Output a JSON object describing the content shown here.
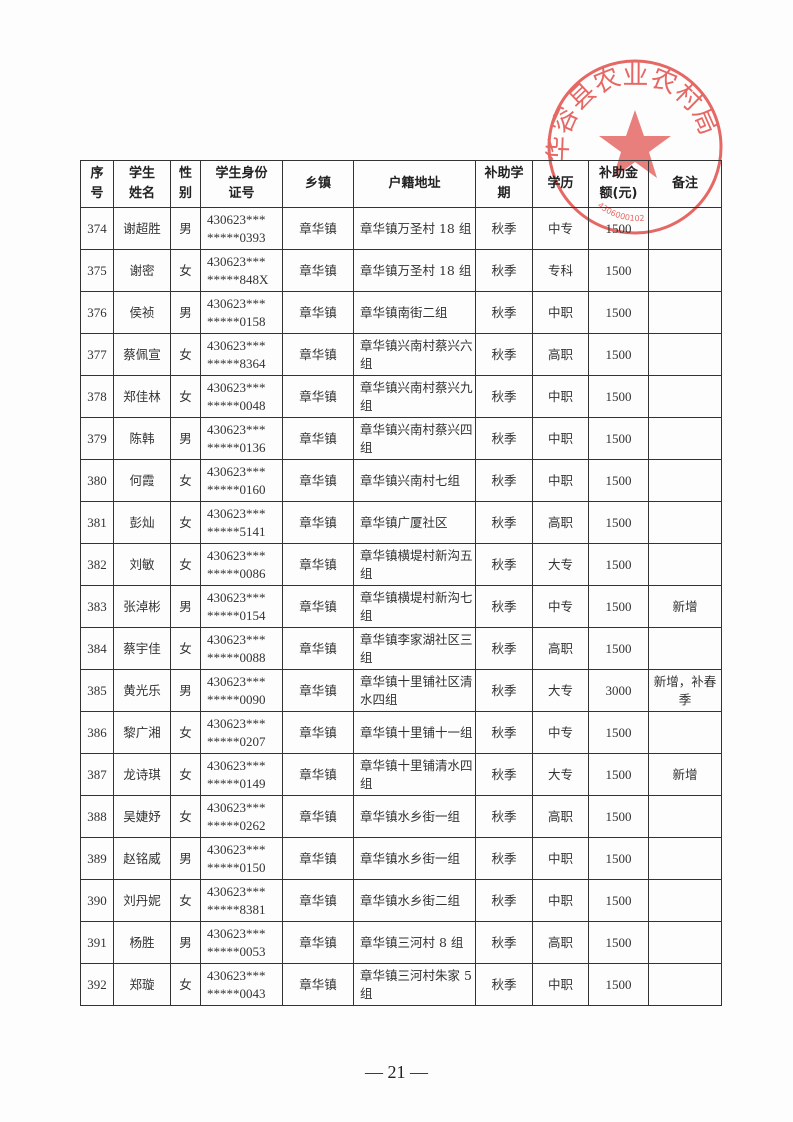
{
  "table": {
    "headers": [
      "序号",
      "学生姓名",
      "性别",
      "学生身份证号",
      "乡镇",
      "户籍地址",
      "补助学期",
      "学历",
      "补助金额(元)",
      "备注"
    ],
    "header_lines": [
      [
        "序",
        "号"
      ],
      [
        "学生",
        "姓名"
      ],
      [
        "性",
        "别"
      ],
      [
        "学生身份",
        "证号"
      ],
      [
        "乡镇"
      ],
      [
        "户籍地址"
      ],
      [
        "补助学",
        "期"
      ],
      [
        "学历"
      ],
      [
        "补助金",
        "额(元)"
      ],
      [
        "备注"
      ]
    ],
    "rows": [
      {
        "no": "374",
        "name": "谢超胜",
        "sex": "男",
        "id1": "430623***",
        "id2": "*****0393",
        "town": "章华镇",
        "addr": "章华镇万圣村 18 组",
        "term": "秋季",
        "edu": "中专",
        "amount": "1500",
        "note": ""
      },
      {
        "no": "375",
        "name": "谢密",
        "sex": "女",
        "id1": "430623***",
        "id2": "*****848X",
        "town": "章华镇",
        "addr": "章华镇万圣村 18 组",
        "term": "秋季",
        "edu": "专科",
        "amount": "1500",
        "note": ""
      },
      {
        "no": "376",
        "name": "侯祯",
        "sex": "男",
        "id1": "430623***",
        "id2": "*****0158",
        "town": "章华镇",
        "addr": "章华镇南街二组",
        "term": "秋季",
        "edu": "中职",
        "amount": "1500",
        "note": ""
      },
      {
        "no": "377",
        "name": "蔡佩宣",
        "sex": "女",
        "id1": "430623***",
        "id2": "*****8364",
        "town": "章华镇",
        "addr": "章华镇兴南村蔡兴六组",
        "term": "秋季",
        "edu": "高职",
        "amount": "1500",
        "note": ""
      },
      {
        "no": "378",
        "name": "郑佳林",
        "sex": "女",
        "id1": "430623***",
        "id2": "*****0048",
        "town": "章华镇",
        "addr": "章华镇兴南村蔡兴九组",
        "term": "秋季",
        "edu": "中职",
        "amount": "1500",
        "note": ""
      },
      {
        "no": "379",
        "name": "陈韩",
        "sex": "男",
        "id1": "430623***",
        "id2": "*****0136",
        "town": "章华镇",
        "addr": "章华镇兴南村蔡兴四组",
        "term": "秋季",
        "edu": "中职",
        "amount": "1500",
        "note": ""
      },
      {
        "no": "380",
        "name": "何霞",
        "sex": "女",
        "id1": "430623***",
        "id2": "*****0160",
        "town": "章华镇",
        "addr": "章华镇兴南村七组",
        "term": "秋季",
        "edu": "中职",
        "amount": "1500",
        "note": ""
      },
      {
        "no": "381",
        "name": "彭灿",
        "sex": "女",
        "id1": "430623***",
        "id2": "*****5141",
        "town": "章华镇",
        "addr": "章华镇广厦社区",
        "term": "秋季",
        "edu": "高职",
        "amount": "1500",
        "note": ""
      },
      {
        "no": "382",
        "name": "刘敏",
        "sex": "女",
        "id1": "430623***",
        "id2": "*****0086",
        "town": "章华镇",
        "addr": "章华镇横堤村新沟五组",
        "term": "秋季",
        "edu": "大专",
        "amount": "1500",
        "note": ""
      },
      {
        "no": "383",
        "name": "张淖彬",
        "sex": "男",
        "id1": "430623***",
        "id2": "*****0154",
        "town": "章华镇",
        "addr": "章华镇横堤村新沟七组",
        "term": "秋季",
        "edu": "中专",
        "amount": "1500",
        "note": "新增"
      },
      {
        "no": "384",
        "name": "蔡宇佳",
        "sex": "女",
        "id1": "430623***",
        "id2": "*****0088",
        "town": "章华镇",
        "addr": "章华镇李家湖社区三组",
        "term": "秋季",
        "edu": "高职",
        "amount": "1500",
        "note": ""
      },
      {
        "no": "385",
        "name": "黄光乐",
        "sex": "男",
        "id1": "430623***",
        "id2": "*****0090",
        "town": "章华镇",
        "addr": "章华镇十里铺社区清水四组",
        "term": "秋季",
        "edu": "大专",
        "amount": "3000",
        "note": "新增，补春季"
      },
      {
        "no": "386",
        "name": "黎广湘",
        "sex": "女",
        "id1": "430623***",
        "id2": "*****0207",
        "town": "章华镇",
        "addr": "章华镇十里铺十一组",
        "term": "秋季",
        "edu": "中专",
        "amount": "1500",
        "note": ""
      },
      {
        "no": "387",
        "name": "龙诗琪",
        "sex": "女",
        "id1": "430623***",
        "id2": "*****0149",
        "town": "章华镇",
        "addr": "章华镇十里铺清水四组",
        "term": "秋季",
        "edu": "大专",
        "amount": "1500",
        "note": "新增"
      },
      {
        "no": "388",
        "name": "吴婕妤",
        "sex": "女",
        "id1": "430623***",
        "id2": "*****0262",
        "town": "章华镇",
        "addr": "章华镇水乡街一组",
        "term": "秋季",
        "edu": "高职",
        "amount": "1500",
        "note": ""
      },
      {
        "no": "389",
        "name": "赵铭威",
        "sex": "男",
        "id1": "430623***",
        "id2": "*****0150",
        "town": "章华镇",
        "addr": "章华镇水乡街一组",
        "term": "秋季",
        "edu": "中职",
        "amount": "1500",
        "note": ""
      },
      {
        "no": "390",
        "name": "刘丹妮",
        "sex": "女",
        "id1": "430623***",
        "id2": "*****8381",
        "town": "章华镇",
        "addr": "章华镇水乡街二组",
        "term": "秋季",
        "edu": "中职",
        "amount": "1500",
        "note": ""
      },
      {
        "no": "391",
        "name": "杨胜",
        "sex": "男",
        "id1": "430623***",
        "id2": "*****0053",
        "town": "章华镇",
        "addr": "章华镇三河村 8 组",
        "term": "秋季",
        "edu": "高职",
        "amount": "1500",
        "note": ""
      },
      {
        "no": "392",
        "name": "郑璇",
        "sex": "女",
        "id1": "430623***",
        "id2": "*****0043",
        "town": "章华镇",
        "addr": "章华镇三河村朱家 5 组",
        "term": "秋季",
        "edu": "中职",
        "amount": "1500",
        "note": ""
      }
    ]
  },
  "stamp": {
    "text": "华容县农业农村局",
    "code": "4306000102",
    "color": "#e0443f"
  },
  "page_number": "— 21 —"
}
